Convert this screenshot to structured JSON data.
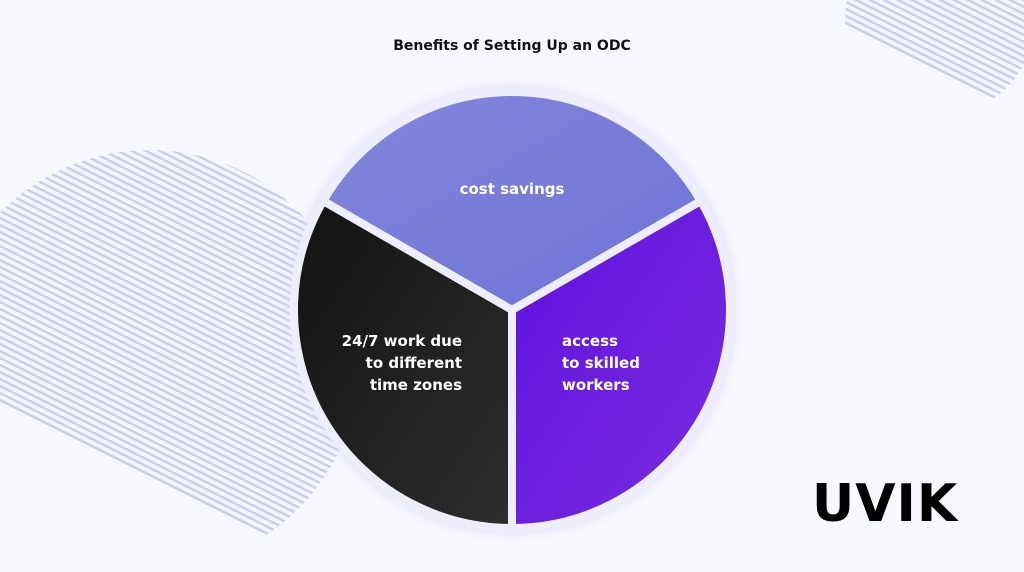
{
  "chart_data": {
    "type": "pie",
    "title": "Benefits of Setting Up an ODC",
    "slices": [
      {
        "label": "cost savings",
        "value": 1,
        "color": "#7b7fdb"
      },
      {
        "label": "access to skilled workers",
        "value": 1,
        "color": "#6a1ee0"
      },
      {
        "label": "24/7 work due to different time zones",
        "value": 1,
        "color": "#1d1d1d"
      }
    ],
    "label_lines": [
      [
        "cost savings"
      ],
      [
        "access",
        "to skilled",
        "workers"
      ],
      [
        "24/7 work due",
        "to different",
        "time zones"
      ]
    ]
  },
  "logo": {
    "text": "UVIK"
  },
  "colors": {
    "background": "#f7f8fd",
    "stripes": "#c9cbf3"
  }
}
